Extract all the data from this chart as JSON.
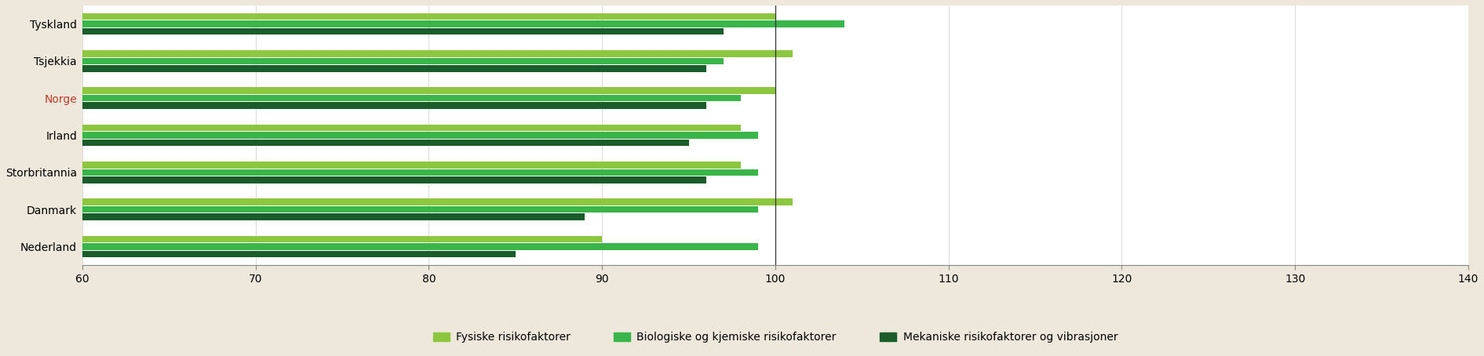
{
  "countries": [
    "Tyskland",
    "Tsjekkia",
    "Norge",
    "Irland",
    "Storbritannia",
    "Danmark",
    "Nederland"
  ],
  "norge_index": 2,
  "series": {
    "Fysiske risikofaktorer": [
      100,
      101,
      100,
      98,
      98,
      101,
      90
    ],
    "Biologiske og kjemiske risikofaktorer": [
      104,
      97,
      98,
      99,
      99,
      99,
      99
    ],
    "Mekaniske risikofaktorer og vibrasjoner": [
      97,
      96,
      96,
      95,
      96,
      89,
      85
    ]
  },
  "colors": {
    "Fysiske risikofaktorer": "#8dc63f",
    "Biologiske og kjemiske risikofaktorer": "#39b54a",
    "Mekaniske risikofaktorer og vibrasjoner": "#1a5c2a"
  },
  "xlim": [
    60,
    140
  ],
  "xticks": [
    60,
    70,
    80,
    90,
    100,
    110,
    120,
    130,
    140
  ],
  "vline": 100,
  "background_color": "#ede8db",
  "chart_bg": "#ffffff",
  "norway_color": "#c0392b",
  "bar_height": 0.18,
  "bar_gap": 0.2
}
